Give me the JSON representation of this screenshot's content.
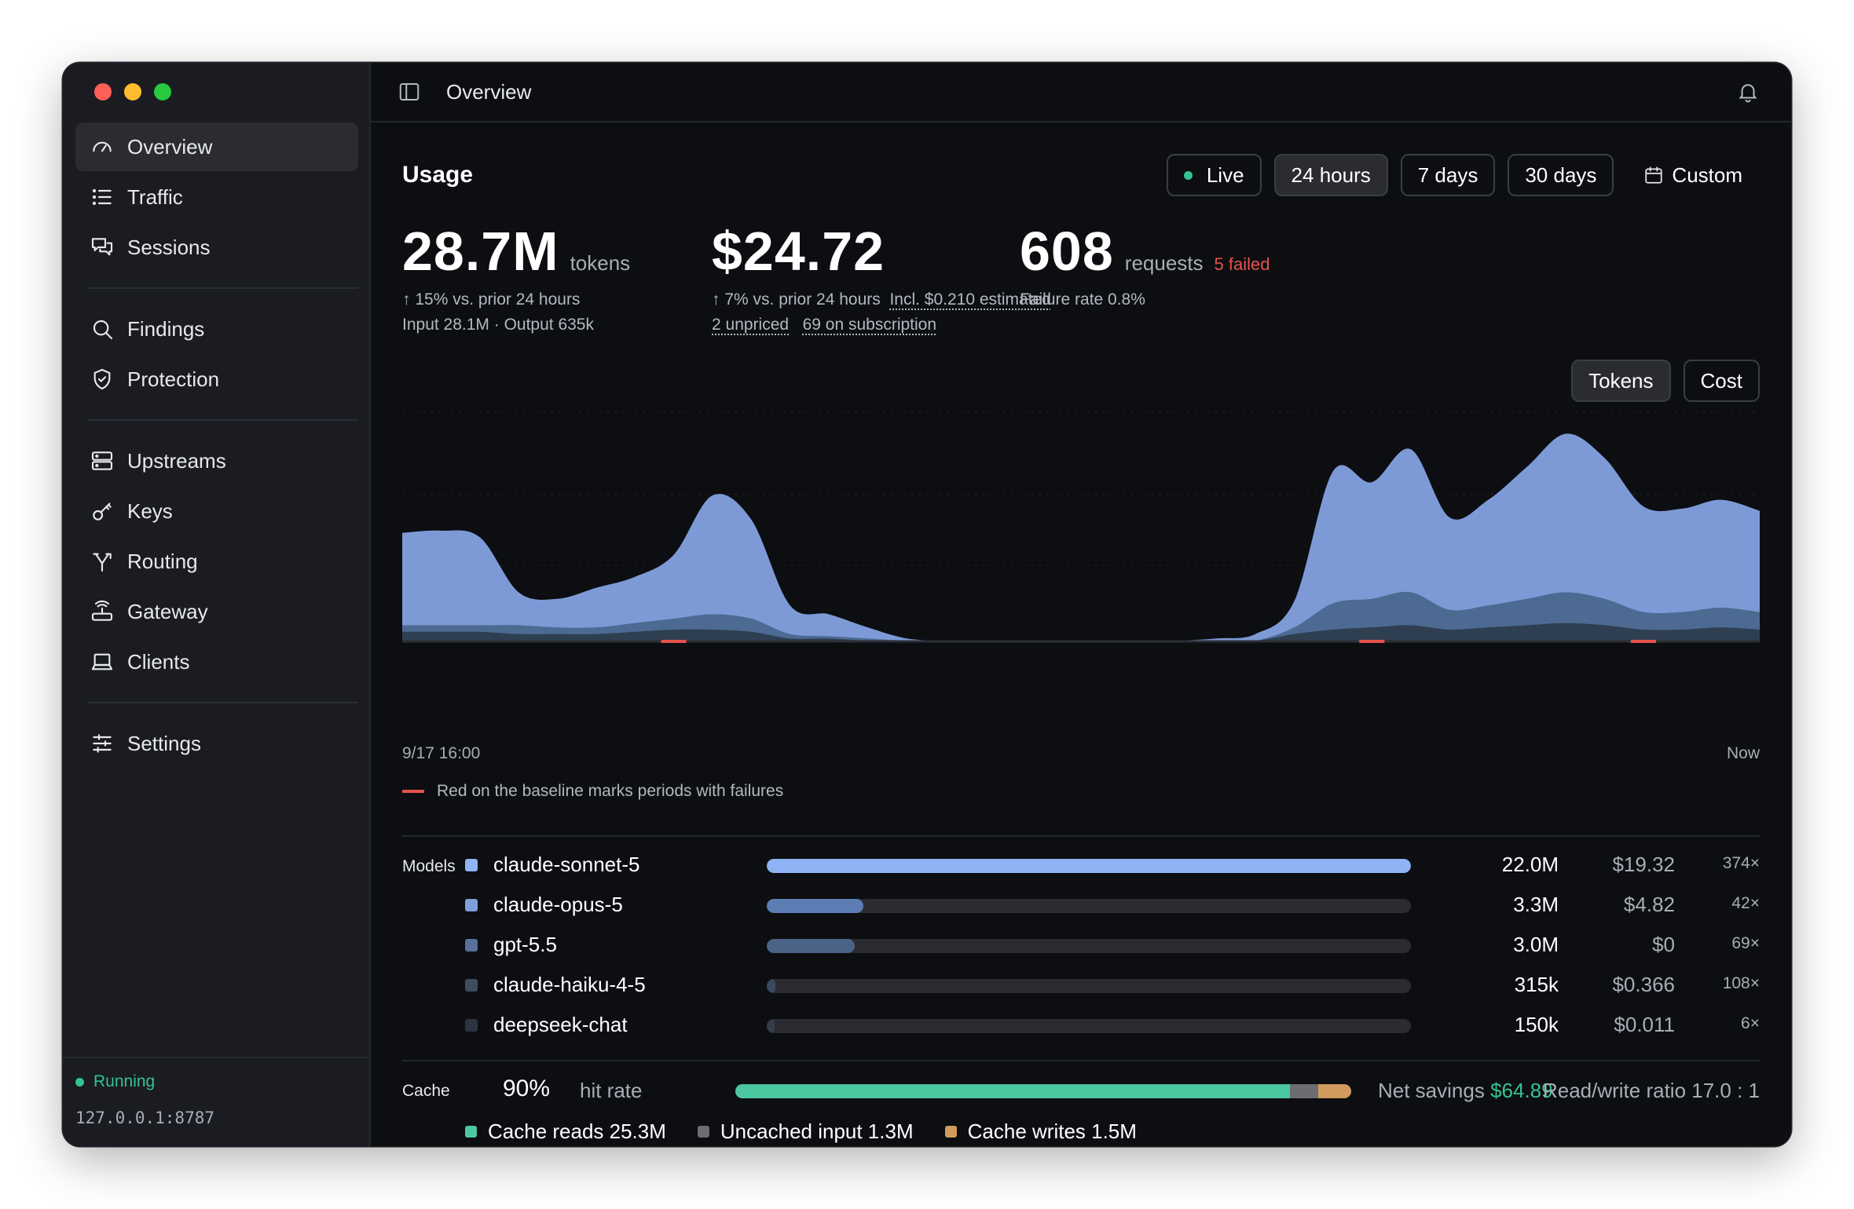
{
  "app": {
    "window_title": "Overview"
  },
  "sidebar": {
    "groups": [
      [
        {
          "label": "Overview",
          "icon": "gauge-icon",
          "active": true
        },
        {
          "label": "Traffic",
          "icon": "list-icon"
        },
        {
          "label": "Sessions",
          "icon": "chat-icon"
        }
      ],
      [
        {
          "label": "Findings",
          "icon": "search-icon"
        },
        {
          "label": "Protection",
          "icon": "shield-icon"
        }
      ],
      [
        {
          "label": "Upstreams",
          "icon": "server-icon"
        },
        {
          "label": "Keys",
          "icon": "key-icon"
        },
        {
          "label": "Routing",
          "icon": "routing-icon"
        },
        {
          "label": "Gateway",
          "icon": "router-icon"
        },
        {
          "label": "Clients",
          "icon": "laptop-icon"
        }
      ],
      [
        {
          "label": "Settings",
          "icon": "sliders-icon"
        }
      ]
    ],
    "status": "Running",
    "address": "127.0.0.1:8787"
  },
  "usage": {
    "title": "Usage",
    "ranges": [
      {
        "label": "Live",
        "live": true
      },
      {
        "label": "24 hours",
        "selected": true
      },
      {
        "label": "7 days"
      },
      {
        "label": "30 days"
      },
      {
        "label": "Custom",
        "icon": "calendar-icon"
      }
    ],
    "metrics": {
      "tokens": {
        "value": "28.7M",
        "unit": "tokens",
        "change": "↑ 15% vs. prior 24 hours",
        "detail": "Input 28.1M · Output 635k"
      },
      "cost": {
        "value": "$24.72",
        "change": "↑ 7% vs. prior 24 hours",
        "estimated": "Incl. $0.210 estimated",
        "unpriced": "2 unpriced",
        "subscription": "69 on subscription"
      },
      "requests": {
        "value": "608",
        "unit": "requests",
        "failed": "5 failed",
        "failure_rate": "Failure rate 0.8%"
      }
    },
    "toggle": {
      "tokens": "Tokens",
      "cost": "Cost",
      "selected": "Tokens"
    },
    "axis": {
      "start": "9/17 16:00",
      "end": "Now"
    },
    "legend_note": "Red on the baseline marks periods with failures"
  },
  "chart_data": {
    "type": "area",
    "stacked": true,
    "x_start": "9/17 16:00",
    "x_end": "Now",
    "points": 36,
    "series": [
      {
        "color": "#7d9ad6",
        "values": [
          4.2,
          4.3,
          4.0,
          1.5,
          1.3,
          1.8,
          2.1,
          2.9,
          5.4,
          4.5,
          1.3,
          1.0,
          0.5,
          0.1,
          0,
          0,
          0,
          0,
          0,
          0,
          0,
          0.1,
          0.3,
          1.2,
          6.0,
          5.3,
          6.5,
          4.2,
          4.8,
          6.0,
          7.2,
          6.4,
          4.8,
          4.7,
          4.9,
          4.6
        ]
      },
      {
        "color": "#4d6a92",
        "values": [
          0.3,
          0.3,
          0.3,
          0.4,
          0.3,
          0.3,
          0.4,
          0.5,
          0.7,
          0.6,
          0.2,
          0.1,
          0.1,
          0,
          0,
          0,
          0,
          0,
          0,
          0,
          0,
          0,
          0,
          0.3,
          1.2,
          1.3,
          1.5,
          0.9,
          1.0,
          1.2,
          1.4,
          1.2,
          0.8,
          0.8,
          0.9,
          0.8
        ]
      },
      {
        "color": "#2e3f52",
        "values": [
          0.4,
          0.4,
          0.4,
          0.3,
          0.3,
          0.3,
          0.4,
          0.5,
          0.5,
          0.4,
          0.1,
          0.1,
          0,
          0,
          0,
          0,
          0,
          0,
          0,
          0,
          0,
          0,
          0,
          0.3,
          0.5,
          0.6,
          0.7,
          0.5,
          0.6,
          0.7,
          0.8,
          0.7,
          0.5,
          0.5,
          0.6,
          0.5
        ]
      }
    ],
    "failure_periods": [
      7,
      25,
      32
    ]
  },
  "models": {
    "label": "Models",
    "rows": [
      {
        "name": "claude-sonnet-5",
        "tokens": "22.0M",
        "cost": "$19.32",
        "requests": "374×",
        "share": 1.0,
        "color": "#8fb3f5",
        "fill": "#8fb3f5"
      },
      {
        "name": "claude-opus-5",
        "tokens": "3.3M",
        "cost": "$4.82",
        "requests": "42×",
        "share": 0.15,
        "color": "#7f9fda",
        "fill": "#5d7db5"
      },
      {
        "name": "gpt-5.5",
        "tokens": "3.0M",
        "cost": "$0",
        "requests": "69×",
        "share": 0.137,
        "color": "#58709a",
        "fill": "#4b6387"
      },
      {
        "name": "claude-haiku-4-5",
        "tokens": "315k",
        "cost": "$0.366",
        "requests": "108×",
        "share": 0.014,
        "color": "#3e4c5f",
        "fill": "#3a4a5e"
      },
      {
        "name": "deepseek-chat",
        "tokens": "150k",
        "cost": "$0.011",
        "requests": "6×",
        "share": 0.007,
        "color": "#2c3440",
        "fill": "#353d48"
      }
    ]
  },
  "cache": {
    "label": "Cache",
    "hit_pct": "90%",
    "hit_label": "hit rate",
    "savings_label": "Net savings",
    "savings_value": "$64.89",
    "ratio": "Read/write ratio 17.0 : 1",
    "segments": [
      {
        "label": "Cache reads 25.3M",
        "share": 0.9,
        "color": "#4cc8a1"
      },
      {
        "label": "Uncached input 1.3M",
        "share": 0.046,
        "color": "#6b6d72"
      },
      {
        "label": "Cache writes 1.5M",
        "share": 0.054,
        "color": "#d09b5c"
      }
    ]
  }
}
